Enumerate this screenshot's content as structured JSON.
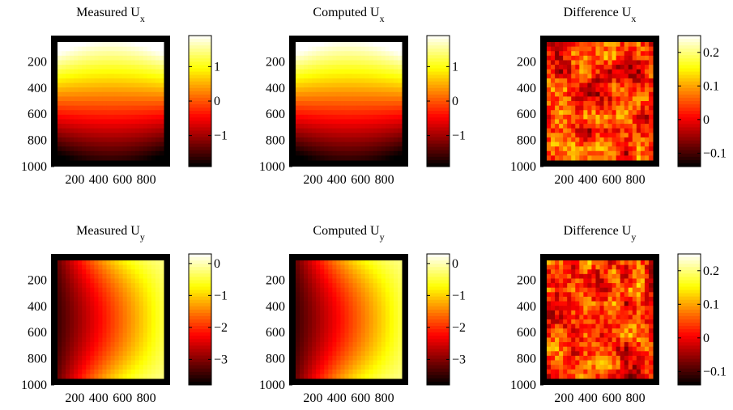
{
  "chart_data": [
    {
      "type": "heatmap",
      "title": "Measured U",
      "title_subscript": "x",
      "colormap": "hot",
      "x_ticks": [
        "200",
        "400",
        "600",
        "800"
      ],
      "y_ticks": [
        "200",
        "400",
        "600",
        "800",
        "1000"
      ],
      "xlim": [
        0,
        1000
      ],
      "ylim": [
        0,
        1000
      ],
      "y_reversed": true,
      "colorbar_ticks": [
        "1",
        "0",
        "−1"
      ],
      "colorbar_tick_values": [
        1,
        0,
        -1
      ],
      "colorbar_range": [
        -1.9,
        1.9
      ],
      "field": "ux"
    },
    {
      "type": "heatmap",
      "title": "Computed U",
      "title_subscript": "x",
      "colormap": "hot",
      "x_ticks": [
        "200",
        "400",
        "600",
        "800"
      ],
      "y_ticks": [
        "200",
        "400",
        "600",
        "800",
        "1000"
      ],
      "xlim": [
        0,
        1000
      ],
      "ylim": [
        0,
        1000
      ],
      "y_reversed": true,
      "colorbar_ticks": [
        "1",
        "0",
        "−1"
      ],
      "colorbar_tick_values": [
        1,
        0,
        -1
      ],
      "colorbar_range": [
        -1.9,
        1.9
      ],
      "field": "ux"
    },
    {
      "type": "heatmap",
      "title": "Difference U",
      "title_subscript": "x",
      "colormap": "hot",
      "x_ticks": [
        "200",
        "400",
        "600",
        "800"
      ],
      "y_ticks": [
        "200",
        "400",
        "600",
        "800",
        "1000"
      ],
      "xlim": [
        0,
        1000
      ],
      "ylim": [
        0,
        1000
      ],
      "y_reversed": true,
      "colorbar_ticks": [
        "0.2",
        "0.1",
        "0",
        "−0.1"
      ],
      "colorbar_tick_values": [
        0.2,
        0.1,
        0,
        -0.1
      ],
      "colorbar_range": [
        -0.14,
        0.25
      ],
      "field": "noise"
    },
    {
      "type": "heatmap",
      "title": "Measured U",
      "title_subscript": "y",
      "colormap": "hot",
      "x_ticks": [
        "200",
        "400",
        "600",
        "800"
      ],
      "y_ticks": [
        "200",
        "400",
        "600",
        "800",
        "1000"
      ],
      "xlim": [
        0,
        1000
      ],
      "ylim": [
        0,
        1000
      ],
      "y_reversed": true,
      "colorbar_ticks": [
        "0",
        "−1",
        "−2",
        "−3"
      ],
      "colorbar_tick_values": [
        0,
        -1,
        -2,
        -3
      ],
      "colorbar_range": [
        -3.8,
        0.3
      ],
      "field": "uy"
    },
    {
      "type": "heatmap",
      "title": "Computed U",
      "title_subscript": "y",
      "colormap": "hot",
      "x_ticks": [
        "200",
        "400",
        "600",
        "800"
      ],
      "y_ticks": [
        "200",
        "400",
        "600",
        "800",
        "1000"
      ],
      "xlim": [
        0,
        1000
      ],
      "ylim": [
        0,
        1000
      ],
      "y_reversed": true,
      "colorbar_ticks": [
        "0",
        "−1",
        "−2",
        "−3"
      ],
      "colorbar_tick_values": [
        0,
        -1,
        -2,
        -3
      ],
      "colorbar_range": [
        -3.8,
        0.3
      ],
      "field": "uy"
    },
    {
      "type": "heatmap",
      "title": "Difference U",
      "title_subscript": "y",
      "colormap": "hot",
      "x_ticks": [
        "200",
        "400",
        "600",
        "800"
      ],
      "y_ticks": [
        "200",
        "400",
        "600",
        "800",
        "1000"
      ],
      "xlim": [
        0,
        1000
      ],
      "ylim": [
        0,
        1000
      ],
      "y_reversed": true,
      "colorbar_ticks": [
        "0.2",
        "0.1",
        "0",
        "−0.1"
      ],
      "colorbar_tick_values": [
        0.2,
        0.1,
        0,
        -0.1
      ],
      "colorbar_range": [
        -0.14,
        0.25
      ],
      "field": "noise"
    }
  ]
}
